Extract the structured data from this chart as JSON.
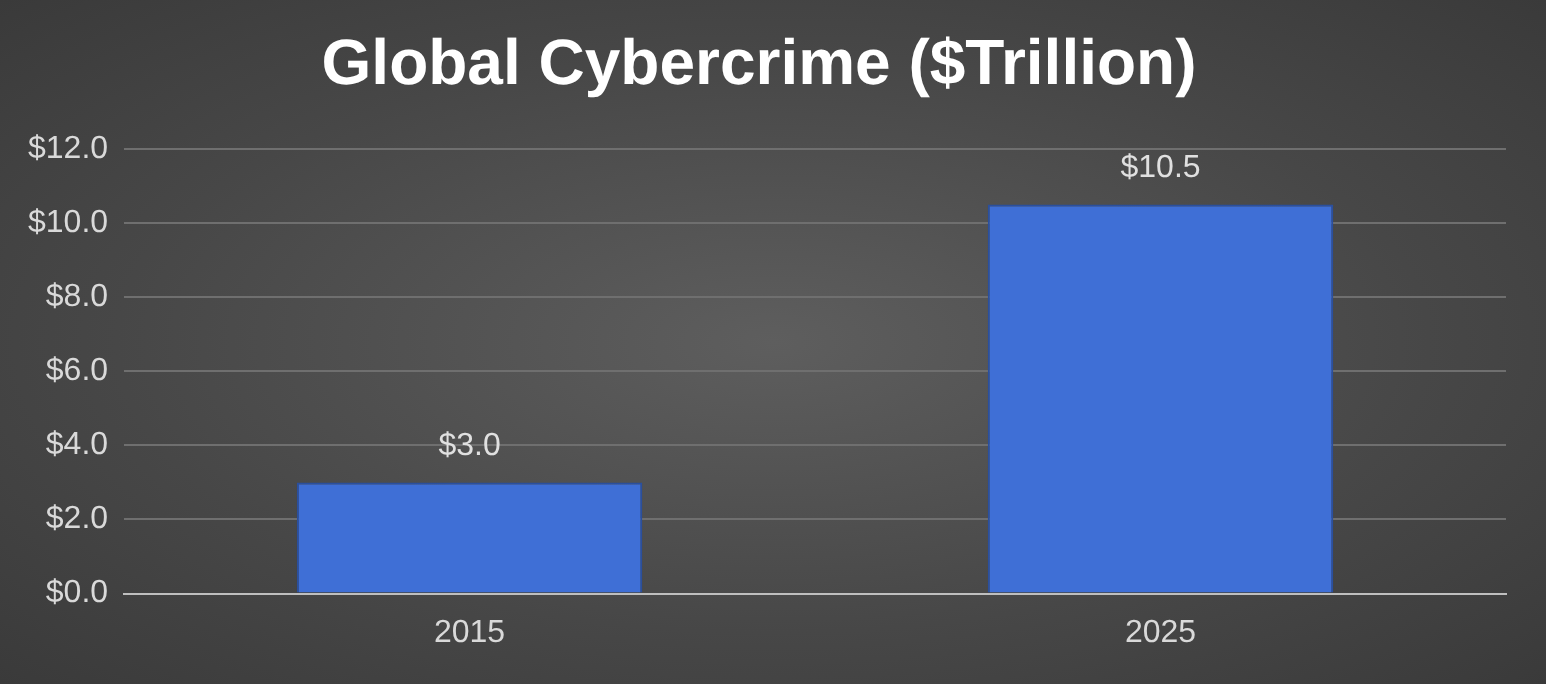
{
  "chart_data": {
    "type": "bar",
    "title": "Global Cybercrime ($Trillion)",
    "categories": [
      "2015",
      "2025"
    ],
    "values": [
      3.0,
      10.5
    ],
    "color": "#3f6fd6",
    "value_labels": [
      "$3.0",
      "$10.5"
    ],
    "ylim": [
      0,
      12
    ],
    "yticks": [
      {
        "value": 0,
        "label": "$0.0"
      },
      {
        "value": 2,
        "label": "$2.0"
      },
      {
        "value": 4,
        "label": "$4.0"
      },
      {
        "value": 6,
        "label": "$6.0"
      },
      {
        "value": 8,
        "label": "$8.0"
      },
      {
        "value": 10,
        "label": "$10.0"
      },
      {
        "value": 12,
        "label": "$12.0"
      }
    ],
    "grid": "y"
  }
}
